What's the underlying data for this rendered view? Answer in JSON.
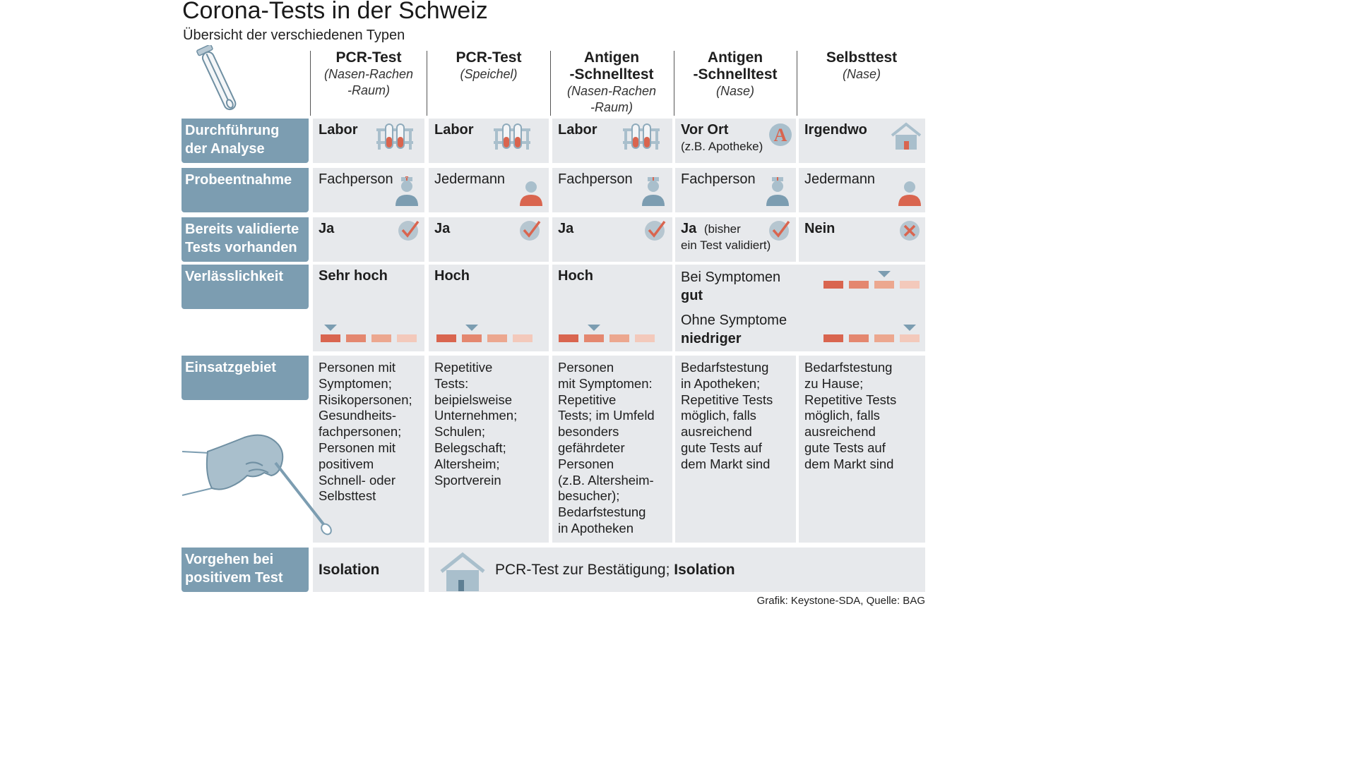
{
  "title": "Corona-Tests in der Schweiz",
  "subtitle": "Übersicht der verschiedenen Typen",
  "columns": [
    {
      "name": "PCR-Test",
      "sub": "(Nasen-Rachen\n-Raum)"
    },
    {
      "name": "PCR-Test",
      "sub": "(Speichel)"
    },
    {
      "name": "Antigen\n-Schnelltest",
      "sub": "(Nasen-Rachen\n-Raum)"
    },
    {
      "name": "Antigen\n-Schnelltest",
      "sub": "(Nase)"
    },
    {
      "name": "Selbsttest",
      "sub": "(Nase)"
    }
  ],
  "rows": {
    "durchfuehrung": {
      "label": "Durchführung\nder Analyse",
      "cells": [
        {
          "main": "Labor",
          "icon": "test-tubes-icon"
        },
        {
          "main": "Labor",
          "icon": "test-tubes-icon"
        },
        {
          "main": "Labor",
          "icon": "test-tubes-icon"
        },
        {
          "main": "Vor Ort",
          "detail": "(z.B. Apotheke)",
          "icon": "pharmacy-icon"
        },
        {
          "main": "Irgendwo",
          "icon": "house-icon"
        }
      ]
    },
    "probeentnahme": {
      "label": "Probeentnahme",
      "cells": [
        {
          "main": "Fachperson",
          "icon": "nurse-icon"
        },
        {
          "main": "Jedermann",
          "icon": "person-icon"
        },
        {
          "main": "Fachperson",
          "icon": "nurse-icon"
        },
        {
          "main": "Fachperson",
          "icon": "nurse-icon"
        },
        {
          "main": "Jedermann",
          "icon": "person-icon"
        }
      ]
    },
    "validiert": {
      "label": "Bereits validierte\nTests vorhanden",
      "cells": [
        {
          "main": "Ja",
          "icon": "check-icon"
        },
        {
          "main": "Ja",
          "icon": "check-icon"
        },
        {
          "main": "Ja",
          "icon": "check-icon"
        },
        {
          "main": "Ja",
          "extra": "(bisher",
          "detail": "ein Test validiert)",
          "icon": "check-icon"
        },
        {
          "main": "Nein",
          "icon": "cross-icon"
        }
      ]
    },
    "verlaesslichkeit": {
      "label": "Verlässlichkeit",
      "scale_levels": 4,
      "cells": [
        {
          "main": "Sehr hoch",
          "level": 1
        },
        {
          "main": "Hoch",
          "level": 2
        },
        {
          "main": "Hoch",
          "level": 2
        },
        {
          "a_text": "Bei Symptomen",
          "a_bold": "gut",
          "a_level": 3,
          "b_text": "Ohne Symptome",
          "b_bold": "niedriger",
          "b_level": 4
        }
      ]
    },
    "einsatzgebiet": {
      "label": "Einsatzgebiet",
      "cells": [
        "Personen mit\nSymptomen;\nRisikopersonen;\nGesundheits-\nfachpersonen;\nPersonen mit\npositivem\nSchnell- oder\nSelbsttest",
        "Repetitive\nTests:\nbeipielsweise\nUnternehmen;\nSchulen;\nBelegschaft;\nAltersheim;\nSportverein",
        "Personen\nmit Symptomen:\nRepetitive\nTests; im Umfeld\nbesonders\ngefährdeter\nPersonen\n(z.B. Altersheim-\nbesucher);\nBedarfstestung\nin Apotheken",
        "Bedarfstestung\nin Apotheken;\nRepetitive Tests\nmöglich, falls\nausreichend\ngute Tests auf\ndem Markt sind",
        "Bedarfstestung\nzu Hause;\nRepetitive Tests\nmöglich, falls\nausreichend\ngute Tests auf\ndem Markt sind"
      ]
    },
    "vorgehen": {
      "label": "Vorgehen bei\npositivem Test",
      "first": "Isolation",
      "rest_text": "PCR-Test zur Bestätigung; ",
      "rest_bold": "Isolation"
    }
  },
  "footer": "Grafik: Keystone-SDA, Quelle: BAG",
  "colors": {
    "label_bg": "#7c9db1",
    "cell_bg": "#e7e9ec",
    "icon_blue": "#8eaabb",
    "red": "#d9654f",
    "scale": [
      "#d9654f",
      "#e4876f",
      "#eca78f",
      "#f3c9bb"
    ]
  }
}
